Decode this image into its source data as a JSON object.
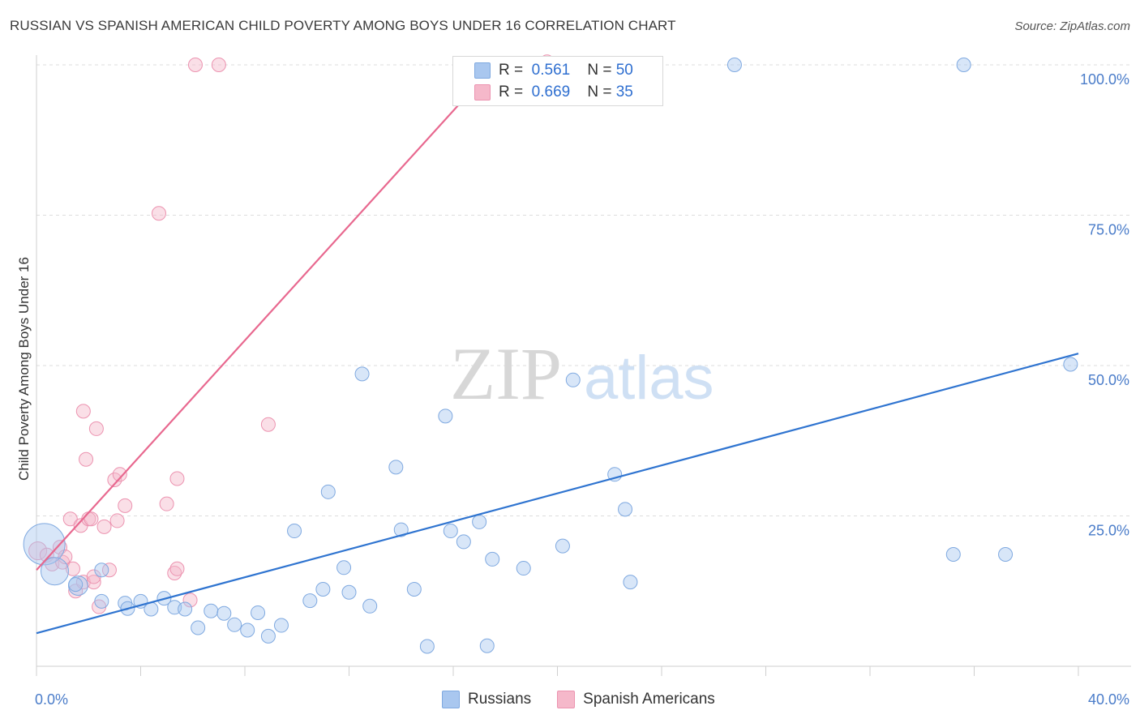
{
  "title": "RUSSIAN VS SPANISH AMERICAN CHILD POVERTY AMONG BOYS UNDER 16 CORRELATION CHART",
  "source": "Source: ZipAtlas.com",
  "watermark": {
    "zip": "ZIP",
    "atlas": "atlas"
  },
  "colors": {
    "russians_fill": "#a9c7ef",
    "russians_stroke": "#7fa9e0",
    "russians_line": "#2f74d0",
    "spanish_fill": "#f5b8ca",
    "spanish_stroke": "#ec93b0",
    "spanish_line": "#e8688f",
    "tick_text": "#4a7cc9",
    "grid": "#dddddd"
  },
  "legend": {
    "rows": [
      {
        "r_label": "R =",
        "r_value": "0.561",
        "n_label": "N =",
        "n_value": "50"
      },
      {
        "r_label": "R =",
        "r_value": "0.669",
        "n_label": "N =",
        "n_value": "35"
      }
    ]
  },
  "chart_data": {
    "type": "scatter",
    "title": "RUSSIAN VS SPANISH AMERICAN CHILD POVERTY AMONG BOYS UNDER 16 CORRELATION CHART",
    "xlabel": "",
    "ylabel": "Child Poverty Among Boys Under 16",
    "xlim": [
      0,
      40
    ],
    "ylim": [
      0,
      104
    ],
    "x_tick_labels": [
      "0.0%",
      "40.0%"
    ],
    "y_ticks": [
      25,
      50,
      75,
      100
    ],
    "y_tick_labels": [
      "25.0%",
      "50.0%",
      "75.0%",
      "100.0%"
    ],
    "grid": "horizontal dashed",
    "legend_placement": "bottom-center",
    "series": [
      {
        "name": "Russians",
        "r": "0.561",
        "n": "50",
        "trend": [
          [
            0,
            5.5
          ],
          [
            40,
            52
          ]
        ],
        "points": [
          {
            "x": 0.3,
            "y": 20.3,
            "s": 3
          },
          {
            "x": 0.7,
            "y": 15.8,
            "s": 2
          },
          {
            "x": 1.6,
            "y": 13.4,
            "s": 1.4
          },
          {
            "x": 1.5,
            "y": 13.6,
            "s": 1
          },
          {
            "x": 2.5,
            "y": 16.0,
            "s": 1
          },
          {
            "x": 2.5,
            "y": 10.8,
            "s": 1
          },
          {
            "x": 3.4,
            "y": 10.5,
            "s": 1
          },
          {
            "x": 3.5,
            "y": 9.6,
            "s": 1
          },
          {
            "x": 4.0,
            "y": 10.8,
            "s": 1
          },
          {
            "x": 4.4,
            "y": 9.5,
            "s": 1
          },
          {
            "x": 4.9,
            "y": 11.3,
            "s": 1
          },
          {
            "x": 5.3,
            "y": 9.8,
            "s": 1
          },
          {
            "x": 5.7,
            "y": 9.5,
            "s": 1
          },
          {
            "x": 6.2,
            "y": 6.4,
            "s": 1
          },
          {
            "x": 6.7,
            "y": 9.2,
            "s": 1
          },
          {
            "x": 7.2,
            "y": 8.8,
            "s": 1
          },
          {
            "x": 7.6,
            "y": 6.9,
            "s": 1
          },
          {
            "x": 8.1,
            "y": 6.0,
            "s": 1
          },
          {
            "x": 8.5,
            "y": 8.9,
            "s": 1
          },
          {
            "x": 8.9,
            "y": 5.0,
            "s": 1
          },
          {
            "x": 9.4,
            "y": 6.8,
            "s": 1
          },
          {
            "x": 9.9,
            "y": 22.5,
            "s": 1
          },
          {
            "x": 10.5,
            "y": 10.9,
            "s": 1
          },
          {
            "x": 11.0,
            "y": 12.8,
            "s": 1
          },
          {
            "x": 11.2,
            "y": 29.0,
            "s": 1
          },
          {
            "x": 11.8,
            "y": 16.4,
            "s": 1
          },
          {
            "x": 12.0,
            "y": 12.3,
            "s": 1
          },
          {
            "x": 12.5,
            "y": 48.6,
            "s": 1
          },
          {
            "x": 12.8,
            "y": 10.0,
            "s": 1
          },
          {
            "x": 13.8,
            "y": 33.1,
            "s": 1
          },
          {
            "x": 14.0,
            "y": 22.7,
            "s": 1
          },
          {
            "x": 14.5,
            "y": 12.8,
            "s": 1
          },
          {
            "x": 15.0,
            "y": 3.3,
            "s": 1
          },
          {
            "x": 15.7,
            "y": 41.6,
            "s": 1
          },
          {
            "x": 15.9,
            "y": 22.5,
            "s": 1
          },
          {
            "x": 16.4,
            "y": 20.7,
            "s": 1
          },
          {
            "x": 17.0,
            "y": 24.0,
            "s": 1
          },
          {
            "x": 17.5,
            "y": 17.8,
            "s": 1
          },
          {
            "x": 17.3,
            "y": 3.4,
            "s": 1
          },
          {
            "x": 18.7,
            "y": 16.3,
            "s": 1
          },
          {
            "x": 20.2,
            "y": 20.0,
            "s": 1
          },
          {
            "x": 20.6,
            "y": 47.6,
            "s": 1
          },
          {
            "x": 22.2,
            "y": 31.9,
            "s": 1
          },
          {
            "x": 22.6,
            "y": 26.1,
            "s": 1
          },
          {
            "x": 22.8,
            "y": 14.0,
            "s": 1
          },
          {
            "x": 26.8,
            "y": 100.0,
            "s": 1
          },
          {
            "x": 35.6,
            "y": 100.0,
            "s": 1
          },
          {
            "x": 35.2,
            "y": 18.6,
            "s": 1
          },
          {
            "x": 37.2,
            "y": 18.6,
            "s": 1
          },
          {
            "x": 39.7,
            "y": 50.2,
            "s": 1
          }
        ]
      },
      {
        "name": "Spanish Americans",
        "r": "0.669",
        "n": "35",
        "trend": [
          [
            0,
            16
          ],
          [
            17.6,
            100
          ]
        ],
        "points": [
          {
            "x": 0.05,
            "y": 19.2,
            "s": 1.3
          },
          {
            "x": 0.4,
            "y": 18.5,
            "s": 1
          },
          {
            "x": 0.6,
            "y": 17.0,
            "s": 1
          },
          {
            "x": 0.9,
            "y": 19.8,
            "s": 1
          },
          {
            "x": 1.0,
            "y": 17.3,
            "s": 1
          },
          {
            "x": 1.1,
            "y": 18.2,
            "s": 1
          },
          {
            "x": 1.3,
            "y": 24.5,
            "s": 1
          },
          {
            "x": 1.4,
            "y": 16.2,
            "s": 1
          },
          {
            "x": 1.5,
            "y": 12.5,
            "s": 1
          },
          {
            "x": 1.7,
            "y": 23.4,
            "s": 1
          },
          {
            "x": 1.8,
            "y": 42.4,
            "s": 1
          },
          {
            "x": 1.8,
            "y": 14.0,
            "s": 1
          },
          {
            "x": 1.9,
            "y": 34.4,
            "s": 1
          },
          {
            "x": 2.0,
            "y": 24.5,
            "s": 1
          },
          {
            "x": 2.1,
            "y": 24.5,
            "s": 1
          },
          {
            "x": 2.2,
            "y": 14.0,
            "s": 1
          },
          {
            "x": 2.2,
            "y": 14.9,
            "s": 1
          },
          {
            "x": 2.4,
            "y": 9.9,
            "s": 1
          },
          {
            "x": 2.3,
            "y": 39.5,
            "s": 1
          },
          {
            "x": 2.6,
            "y": 23.2,
            "s": 1
          },
          {
            "x": 2.8,
            "y": 16.0,
            "s": 1
          },
          {
            "x": 3.0,
            "y": 31.0,
            "s": 1
          },
          {
            "x": 3.1,
            "y": 24.2,
            "s": 1
          },
          {
            "x": 3.2,
            "y": 31.9,
            "s": 1
          },
          {
            "x": 3.4,
            "y": 26.7,
            "s": 1
          },
          {
            "x": 4.7,
            "y": 75.3,
            "s": 1
          },
          {
            "x": 5.0,
            "y": 27.0,
            "s": 1
          },
          {
            "x": 5.3,
            "y": 15.5,
            "s": 1
          },
          {
            "x": 5.4,
            "y": 16.2,
            "s": 1
          },
          {
            "x": 5.4,
            "y": 31.2,
            "s": 1
          },
          {
            "x": 5.9,
            "y": 11.0,
            "s": 1
          },
          {
            "x": 6.1,
            "y": 100.0,
            "s": 1
          },
          {
            "x": 7.0,
            "y": 100.0,
            "s": 1
          },
          {
            "x": 8.9,
            "y": 40.2,
            "s": 1
          },
          {
            "x": 19.6,
            "y": 100.5,
            "s": 1
          }
        ]
      }
    ]
  }
}
